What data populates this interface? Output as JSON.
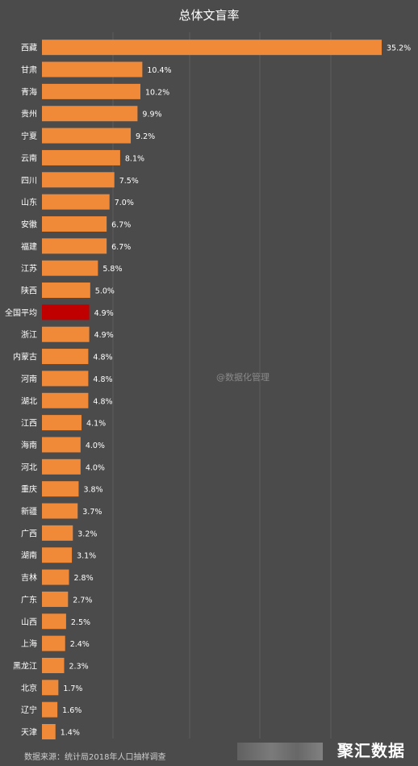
{
  "chart_data": {
    "type": "bar",
    "orientation": "horizontal",
    "title": "总体文盲率",
    "categories": [
      "西藏",
      "甘肃",
      "青海",
      "贵州",
      "宁夏",
      "云南",
      "四川",
      "山东",
      "安徽",
      "福建",
      "江苏",
      "陕西",
      "全国平均",
      "浙江",
      "内蒙古",
      "河南",
      "湖北",
      "江西",
      "海南",
      "河北",
      "重庆",
      "新疆",
      "广西",
      "湖南",
      "吉林",
      "广东",
      "山西",
      "上海",
      "黑龙江",
      "北京",
      "辽宁",
      "天津"
    ],
    "values": [
      35.2,
      10.4,
      10.2,
      9.9,
      9.2,
      8.1,
      7.5,
      7.0,
      6.7,
      6.7,
      5.8,
      5.0,
      4.9,
      4.9,
      4.8,
      4.8,
      4.8,
      4.1,
      4.0,
      4.0,
      3.8,
      3.7,
      3.2,
      3.1,
      2.8,
      2.7,
      2.5,
      2.4,
      2.3,
      1.7,
      1.6,
      1.4
    ],
    "data_labels": [
      "35.2%",
      "10.4%",
      "10.2%",
      "9.9%",
      "9.2%",
      "8.1%",
      "7.5%",
      "7.0%",
      "6.7%",
      "6.7%",
      "5.8%",
      "5.0%",
      "4.9%",
      "4.9%",
      "4.8%",
      "4.8%",
      "4.8%",
      "4.1%",
      "4.0%",
      "4.0%",
      "3.8%",
      "3.7%",
      "3.2%",
      "3.1%",
      "2.8%",
      "2.7%",
      "2.5%",
      "2.4%",
      "2.3%",
      "1.7%",
      "1.6%",
      "1.4%"
    ],
    "highlight_category": "全国平均",
    "xlim": [
      0,
      35.2
    ],
    "grid": true,
    "colors": {
      "bar": "#f08a38",
      "highlight": "#c00000",
      "background": "#4b4b4b",
      "grid": "#5e5e5e",
      "text": "#ffffff"
    }
  },
  "watermark": "@数据化管理",
  "source": "数据来源：统计局2018年人口抽样调查",
  "brand": "聚汇数据"
}
